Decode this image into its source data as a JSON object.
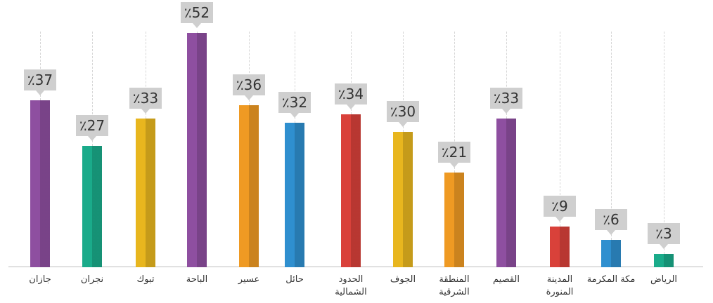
{
  "chart_data": {
    "type": "bar",
    "categories": [
      "جازان",
      "نجران",
      "تبوك",
      "الباحة",
      "عسير",
      "حائل",
      "الحدود الشمالية",
      "الجوف",
      "المنطقة الشرقية",
      "القصيم",
      "المدينة المنورة",
      "مكة المكرمة",
      "الرياض"
    ],
    "values": [
      37,
      27,
      33,
      52,
      36,
      32,
      34,
      30,
      21,
      33,
      9,
      6,
      3
    ],
    "value_labels": [
      "٪37",
      "٪27",
      "٪33",
      "٪52",
      "٪36",
      "٪32",
      "٪34",
      "٪30",
      "٪21",
      "٪33",
      "٪9",
      "٪6",
      "٪3"
    ],
    "colors": [
      "#8e4fa0",
      "#1aab8a",
      "#e8b61e",
      "#8e4fa0",
      "#ef9a23",
      "#2f8fcf",
      "#d9413a",
      "#e8b61e",
      "#ef9a23",
      "#8e4fa0",
      "#d9413a",
      "#2f8fcf",
      "#1aab8a"
    ]
  }
}
